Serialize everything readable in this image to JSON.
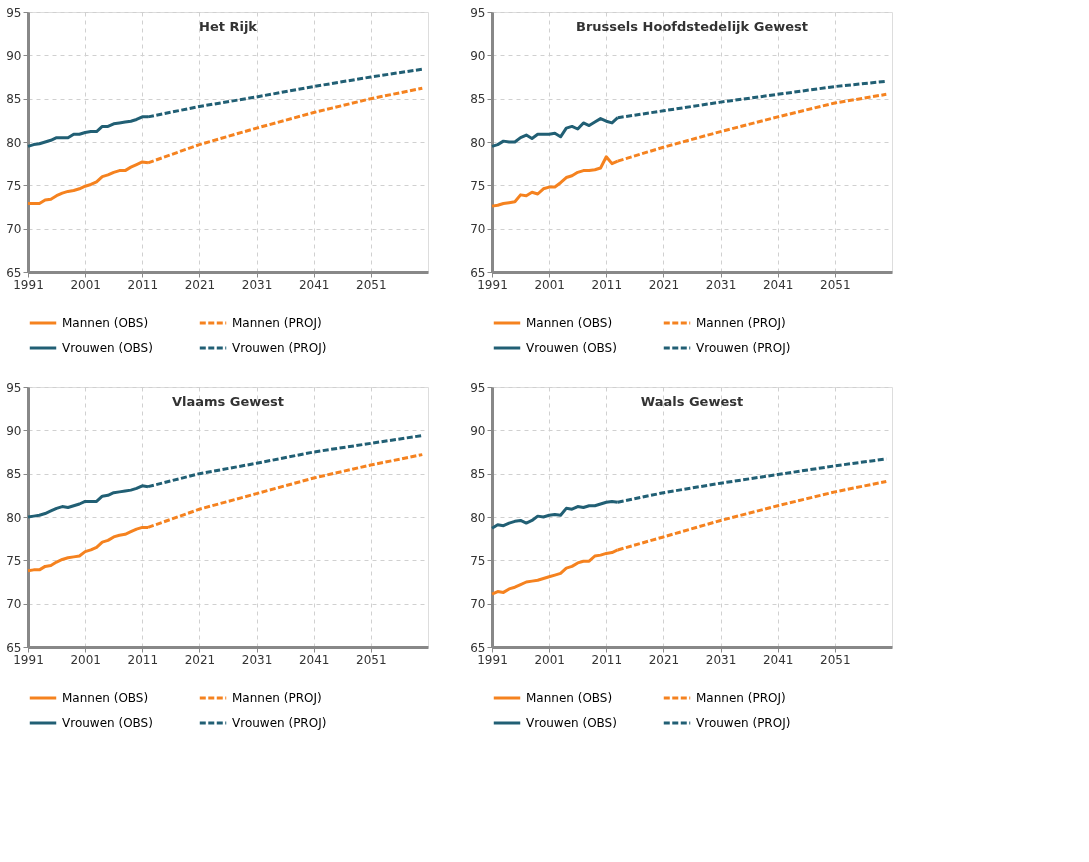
{
  "chart_data": [
    {
      "type": "line",
      "title": "Het Rijk",
      "xlim": [
        1991,
        2061
      ],
      "xticks": [
        1991,
        2001,
        2011,
        2021,
        2031,
        2041,
        2051
      ],
      "ylim": [
        65,
        95
      ],
      "yticks": [
        65,
        70,
        75,
        80,
        85,
        90,
        95
      ],
      "grid": true,
      "legend": "bottom",
      "series": [
        {
          "name": "Mannen (OBS)",
          "color": "#f5821f",
          "line_style": "solid",
          "x": [
            1991,
            1992,
            1993,
            1994,
            1995,
            1996,
            1997,
            1998,
            1999,
            2000,
            2001,
            2002,
            2003,
            2004,
            2005,
            2006,
            2007,
            2008,
            2009,
            2010,
            2011,
            2012
          ],
          "values": [
            72.9,
            72.9,
            72.9,
            73.3,
            73.4,
            73.8,
            74.1,
            74.3,
            74.4,
            74.6,
            74.9,
            75.1,
            75.4,
            76.0,
            76.2,
            76.5,
            76.7,
            76.7,
            77.1,
            77.4,
            77.7,
            77.6
          ]
        },
        {
          "name": "Mannen (PROJ)",
          "color": "#f5821f",
          "line_style": "dashed",
          "x": [
            2012,
            2021,
            2031,
            2041,
            2051,
            2060
          ],
          "values": [
            77.6,
            79.7,
            81.6,
            83.4,
            85.0,
            86.2
          ]
        },
        {
          "name": "Vrouwen (OBS)",
          "color": "#215f74",
          "line_style": "solid",
          "x": [
            1991,
            1992,
            1993,
            1994,
            1995,
            1996,
            1997,
            1998,
            1999,
            2000,
            2001,
            2002,
            2003,
            2004,
            2005,
            2006,
            2007,
            2008,
            2009,
            2010,
            2011,
            2012
          ],
          "values": [
            79.5,
            79.7,
            79.8,
            80.0,
            80.2,
            80.5,
            80.5,
            80.5,
            80.9,
            80.9,
            81.1,
            81.2,
            81.2,
            81.8,
            81.8,
            82.1,
            82.2,
            82.3,
            82.4,
            82.6,
            82.9,
            82.9
          ]
        },
        {
          "name": "Vrouwen (PROJ)",
          "color": "#215f74",
          "line_style": "dashed",
          "x": [
            2012,
            2021,
            2031,
            2041,
            2051,
            2060
          ],
          "values": [
            82.9,
            84.1,
            85.2,
            86.4,
            87.5,
            88.4
          ]
        }
      ]
    },
    {
      "type": "line",
      "title": "Brussels Hoofdstedelijk Gewest",
      "xlim": [
        1991,
        2061
      ],
      "xticks": [
        1991,
        2001,
        2011,
        2021,
        2031,
        2041,
        2051
      ],
      "ylim": [
        65,
        95
      ],
      "yticks": [
        65,
        70,
        75,
        80,
        85,
        90,
        95
      ],
      "grid": true,
      "legend": "bottom",
      "series": [
        {
          "name": "Mannen (OBS)",
          "color": "#f5821f",
          "line_style": "solid",
          "x": [
            1991,
            1992,
            1993,
            1994,
            1995,
            1996,
            1997,
            1998,
            1999,
            2000,
            2001,
            2002,
            2003,
            2004,
            2005,
            2006,
            2007,
            2008,
            2009,
            2010,
            2011,
            2012,
            2013
          ],
          "values": [
            72.6,
            72.7,
            72.9,
            73.0,
            73.1,
            73.9,
            73.8,
            74.2,
            74.0,
            74.6,
            74.8,
            74.8,
            75.3,
            75.9,
            76.1,
            76.5,
            76.7,
            76.7,
            76.8,
            77.0,
            78.3,
            77.5,
            77.8
          ]
        },
        {
          "name": "Mannen (PROJ)",
          "color": "#f5821f",
          "line_style": "dashed",
          "x": [
            2013,
            2021,
            2031,
            2041,
            2051,
            2060
          ],
          "values": [
            77.8,
            79.4,
            81.2,
            82.9,
            84.5,
            85.5
          ]
        },
        {
          "name": "Vrouwen (OBS)",
          "color": "#215f74",
          "line_style": "solid",
          "x": [
            1991,
            1992,
            1993,
            1994,
            1995,
            1996,
            1997,
            1998,
            1999,
            2000,
            2001,
            2002,
            2003,
            2004,
            2005,
            2006,
            2007,
            2008,
            2009,
            2010,
            2011,
            2012,
            2013
          ],
          "values": [
            79.5,
            79.7,
            80.1,
            80.0,
            80.0,
            80.5,
            80.8,
            80.4,
            80.9,
            80.9,
            80.9,
            81.0,
            80.6,
            81.6,
            81.8,
            81.5,
            82.2,
            81.9,
            82.3,
            82.7,
            82.4,
            82.2,
            82.8
          ]
        },
        {
          "name": "Vrouwen (PROJ)",
          "color": "#215f74",
          "line_style": "dashed",
          "x": [
            2013,
            2021,
            2031,
            2041,
            2051,
            2060
          ],
          "values": [
            82.8,
            83.6,
            84.6,
            85.5,
            86.4,
            87.0
          ]
        }
      ]
    },
    {
      "type": "line",
      "title": "Vlaams Gewest",
      "xlim": [
        1991,
        2061
      ],
      "xticks": [
        1991,
        2001,
        2011,
        2021,
        2031,
        2041,
        2051
      ],
      "ylim": [
        65,
        95
      ],
      "yticks": [
        65,
        70,
        75,
        80,
        85,
        90,
        95
      ],
      "grid": true,
      "legend": "bottom",
      "series": [
        {
          "name": "Mannen (OBS)",
          "color": "#f5821f",
          "line_style": "solid",
          "x": [
            1991,
            1992,
            1993,
            1994,
            1995,
            1996,
            1997,
            1998,
            1999,
            2000,
            2001,
            2002,
            2003,
            2004,
            2005,
            2006,
            2007,
            2008,
            2009,
            2010,
            2011,
            2012
          ],
          "values": [
            73.8,
            73.9,
            73.9,
            74.3,
            74.4,
            74.8,
            75.1,
            75.3,
            75.4,
            75.5,
            76.0,
            76.2,
            76.5,
            77.1,
            77.3,
            77.7,
            77.9,
            78.0,
            78.3,
            78.6,
            78.8,
            78.8
          ]
        },
        {
          "name": "Mannen (PROJ)",
          "color": "#f5821f",
          "line_style": "dashed",
          "x": [
            2012,
            2021,
            2031,
            2041,
            2051,
            2060
          ],
          "values": [
            78.8,
            80.9,
            82.7,
            84.5,
            86.0,
            87.2
          ]
        },
        {
          "name": "Vrouwen (OBS)",
          "color": "#215f74",
          "line_style": "solid",
          "x": [
            1991,
            1992,
            1993,
            1994,
            1995,
            1996,
            1997,
            1998,
            1999,
            2000,
            2001,
            2002,
            2003,
            2004,
            2005,
            2006,
            2007,
            2008,
            2009,
            2010,
            2011,
            2012
          ],
          "values": [
            80.0,
            80.1,
            80.2,
            80.4,
            80.7,
            81.0,
            81.2,
            81.1,
            81.3,
            81.5,
            81.8,
            81.8,
            81.8,
            82.4,
            82.5,
            82.8,
            82.9,
            83.0,
            83.1,
            83.3,
            83.6,
            83.5
          ]
        },
        {
          "name": "Vrouwen (PROJ)",
          "color": "#215f74",
          "line_style": "dashed",
          "x": [
            2012,
            2021,
            2031,
            2041,
            2051,
            2060
          ],
          "values": [
            83.5,
            85.0,
            86.2,
            87.5,
            88.5,
            89.4
          ]
        }
      ]
    },
    {
      "type": "line",
      "title": "Waals Gewest",
      "xlim": [
        1991,
        2061
      ],
      "xticks": [
        1991,
        2001,
        2011,
        2021,
        2031,
        2041,
        2051
      ],
      "ylim": [
        65,
        95
      ],
      "yticks": [
        65,
        70,
        75,
        80,
        85,
        90,
        95
      ],
      "grid": true,
      "legend": "bottom",
      "series": [
        {
          "name": "Mannen (OBS)",
          "color": "#f5821f",
          "line_style": "solid",
          "x": [
            1991,
            1992,
            1993,
            1994,
            1995,
            1996,
            1997,
            1998,
            1999,
            2000,
            2001,
            2002,
            2003,
            2004,
            2005,
            2006,
            2007,
            2008,
            2009,
            2010,
            2011,
            2012,
            2013
          ],
          "values": [
            71.1,
            71.4,
            71.3,
            71.7,
            71.9,
            72.2,
            72.5,
            72.6,
            72.7,
            72.9,
            73.1,
            73.3,
            73.5,
            74.1,
            74.3,
            74.7,
            74.9,
            74.9,
            75.5,
            75.6,
            75.8,
            75.9,
            76.2
          ]
        },
        {
          "name": "Mannen (PROJ)",
          "color": "#f5821f",
          "line_style": "dashed",
          "x": [
            2013,
            2021,
            2031,
            2041,
            2051,
            2060
          ],
          "values": [
            76.2,
            77.7,
            79.6,
            81.3,
            82.9,
            84.1
          ]
        },
        {
          "name": "Vrouwen (OBS)",
          "color": "#215f74",
          "line_style": "solid",
          "x": [
            1991,
            1992,
            1993,
            1994,
            1995,
            1996,
            1997,
            1998,
            1999,
            2000,
            2001,
            2002,
            2003,
            2004,
            2005,
            2006,
            2007,
            2008,
            2009,
            2010,
            2011,
            2012,
            2013
          ],
          "values": [
            78.7,
            79.1,
            79.0,
            79.3,
            79.5,
            79.6,
            79.3,
            79.6,
            80.1,
            80.0,
            80.2,
            80.3,
            80.2,
            81.0,
            80.9,
            81.2,
            81.1,
            81.3,
            81.3,
            81.5,
            81.7,
            81.8,
            81.7
          ]
        },
        {
          "name": "Vrouwen (PROJ)",
          "color": "#215f74",
          "line_style": "dashed",
          "x": [
            2013,
            2021,
            2031,
            2041,
            2051,
            2060
          ],
          "values": [
            81.7,
            82.8,
            83.9,
            84.9,
            85.9,
            86.7
          ]
        }
      ]
    }
  ]
}
